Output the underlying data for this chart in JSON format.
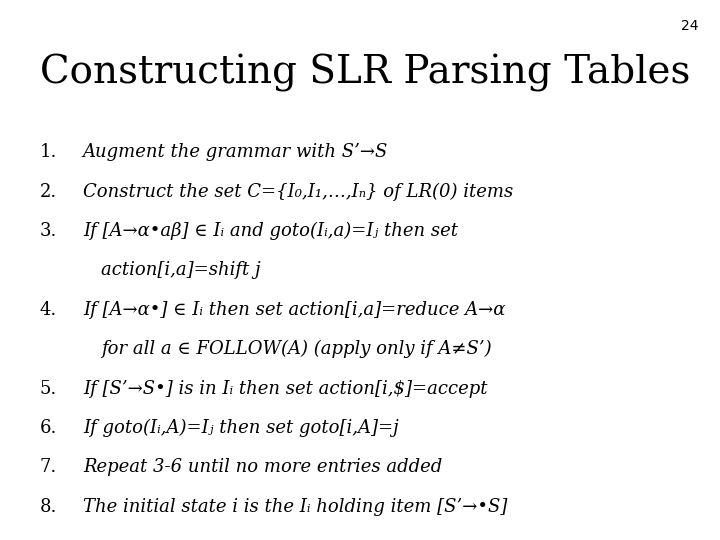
{
  "slide_number": "24",
  "title": "Constructing SLR Parsing Tables",
  "background_color": "#ffffff",
  "text_color": "#000000",
  "title_fontsize": 28,
  "body_fontsize": 13,
  "slide_num_fontsize": 10,
  "lines": [
    {
      "num": "1.",
      "text": "Augment the grammar with S’→S",
      "indent": false
    },
    {
      "num": "2.",
      "text": "Construct the set C={I₀,I₁,…,Iₙ} of LR(0) items",
      "indent": false
    },
    {
      "num": "3.",
      "text": "If [A→α•aβ] ∈ Iᵢ and goto(Iᵢ,a)=Iⱼ then set",
      "indent": false
    },
    {
      "num": "",
      "text": "action[i,a]=shift j",
      "indent": true
    },
    {
      "num": "4.",
      "text": "If [A→α•] ∈ Iᵢ then set action[i,a]=reduce A→α",
      "indent": false
    },
    {
      "num": "",
      "text": "for all a ∈ FOLLOW(A) (apply only if A≠S’)",
      "indent": true
    },
    {
      "num": "5.",
      "text": "If [S’→S•] is in Iᵢ then set action[i,$]=accept",
      "indent": false
    },
    {
      "num": "6.",
      "text": "If goto(Iᵢ,A)=Iⱼ then set goto[i,A]=j",
      "indent": false
    },
    {
      "num": "7.",
      "text": "Repeat 3-6 until no more entries added",
      "indent": false
    },
    {
      "num": "8.",
      "text": "The initial state i is the Iᵢ holding item [S’→•S]",
      "indent": false
    }
  ]
}
